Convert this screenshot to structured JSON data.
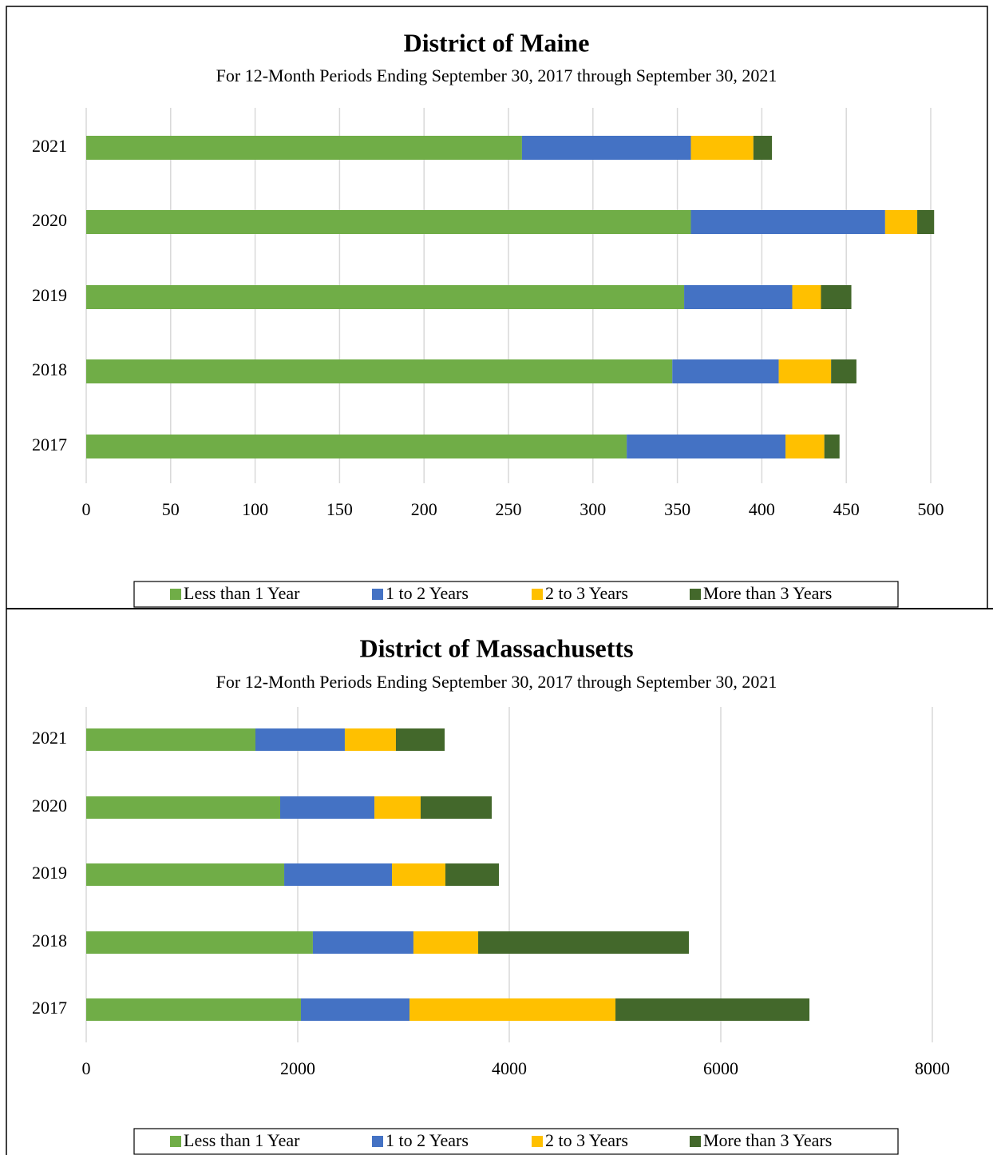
{
  "chart_data": [
    {
      "type": "barh_stacked",
      "title": "District of Maine",
      "subtitle": "For 12-Month Periods Ending September 30, 2017 through September 30, 2021",
      "categories": [
        "2021",
        "2020",
        "2019",
        "2018",
        "2017"
      ],
      "series": [
        {
          "name": "Less than 1 Year",
          "color": "#70ad47",
          "values": [
            258,
            358,
            354,
            347,
            320
          ]
        },
        {
          "name": "1 to 2 Years",
          "color": "#4472c4",
          "values": [
            100,
            115,
            64,
            63,
            94
          ]
        },
        {
          "name": "2 to 3 Years",
          "color": "#ffc000",
          "values": [
            37,
            19,
            17,
            31,
            23
          ]
        },
        {
          "name": "More than 3 Years",
          "color": "#43682b",
          "values": [
            11,
            10,
            18,
            15,
            9
          ]
        }
      ],
      "xlim": [
        0,
        500
      ],
      "xticks": [
        0,
        50,
        100,
        150,
        200,
        250,
        300,
        350,
        400,
        450,
        500
      ],
      "grid": true,
      "legend": "bottom"
    },
    {
      "type": "barh_stacked",
      "title": "District of Massachusetts",
      "subtitle": "For 12-Month Periods Ending September 30, 2017 through September 30, 2021",
      "categories": [
        "2021",
        "2020",
        "2019",
        "2018",
        "2017"
      ],
      "series": [
        {
          "name": "Less than 1 Year",
          "color": "#70ad47",
          "values": [
            1600,
            1834,
            1872,
            2143,
            2030
          ]
        },
        {
          "name": "1 to 2 Years",
          "color": "#4472c4",
          "values": [
            845,
            891,
            1019,
            951,
            1027
          ]
        },
        {
          "name": "2 to 3 Years",
          "color": "#ffc000",
          "values": [
            483,
            437,
            505,
            612,
            1947
          ]
        },
        {
          "name": "More than 3 Years",
          "color": "#43682b",
          "values": [
            461,
            672,
            506,
            1992,
            1834
          ]
        }
      ],
      "xlim": [
        0,
        8000
      ],
      "xticks": [
        0,
        2000,
        4000,
        6000,
        8000
      ],
      "grid": true,
      "legend": "bottom"
    }
  ]
}
